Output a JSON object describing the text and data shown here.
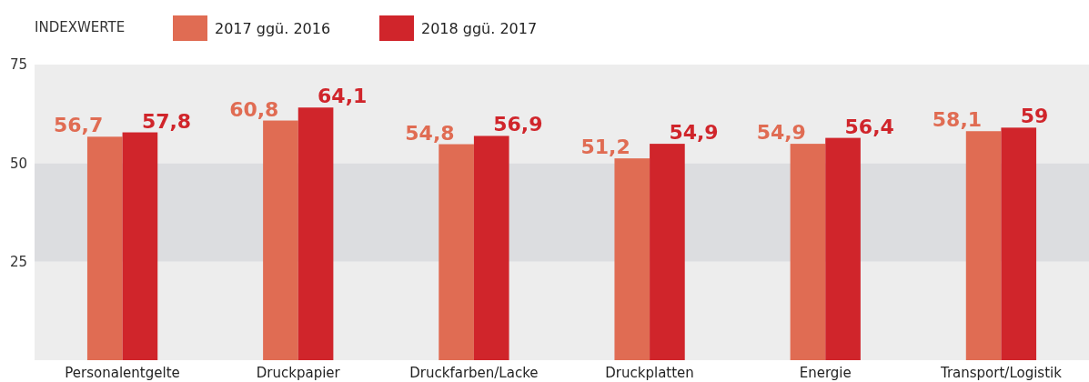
{
  "chart_data": {
    "type": "bar",
    "legend_title": "INDEXWERTE",
    "categories": [
      "Personalentgelte",
      "Druckpapier",
      "Druckfarben/Lacke",
      "Druckplatten",
      "Energie",
      "Transport/Logistik"
    ],
    "series": [
      {
        "name": "2017 ggü. 2016",
        "color": "#e06c53",
        "values": [
          56.7,
          60.8,
          54.8,
          51.2,
          54.9,
          58.1
        ],
        "value_labels": [
          "56,7",
          "60,8",
          "54,8",
          "51,2",
          "54,9",
          "58,1"
        ]
      },
      {
        "name": "2018 ggü. 2017",
        "color": "#d0252b",
        "values": [
          57.8,
          64.1,
          56.9,
          54.9,
          56.4,
          59
        ],
        "value_labels": [
          "57,8",
          "64,1",
          "56,9",
          "54,9",
          "56,4",
          "59"
        ]
      }
    ],
    "ylim": [
      0,
      75
    ],
    "yticks": [
      25,
      50,
      75
    ],
    "bands": [
      {
        "axis": "y",
        "from": 0,
        "to": 25,
        "color": "#ededed"
      },
      {
        "axis": "y",
        "from": 25,
        "to": 50,
        "color": "#dcdde0"
      },
      {
        "axis": "y",
        "from": 50,
        "to": 75,
        "color": "#ededed"
      }
    ],
    "legend": "top left",
    "grid": false
  }
}
